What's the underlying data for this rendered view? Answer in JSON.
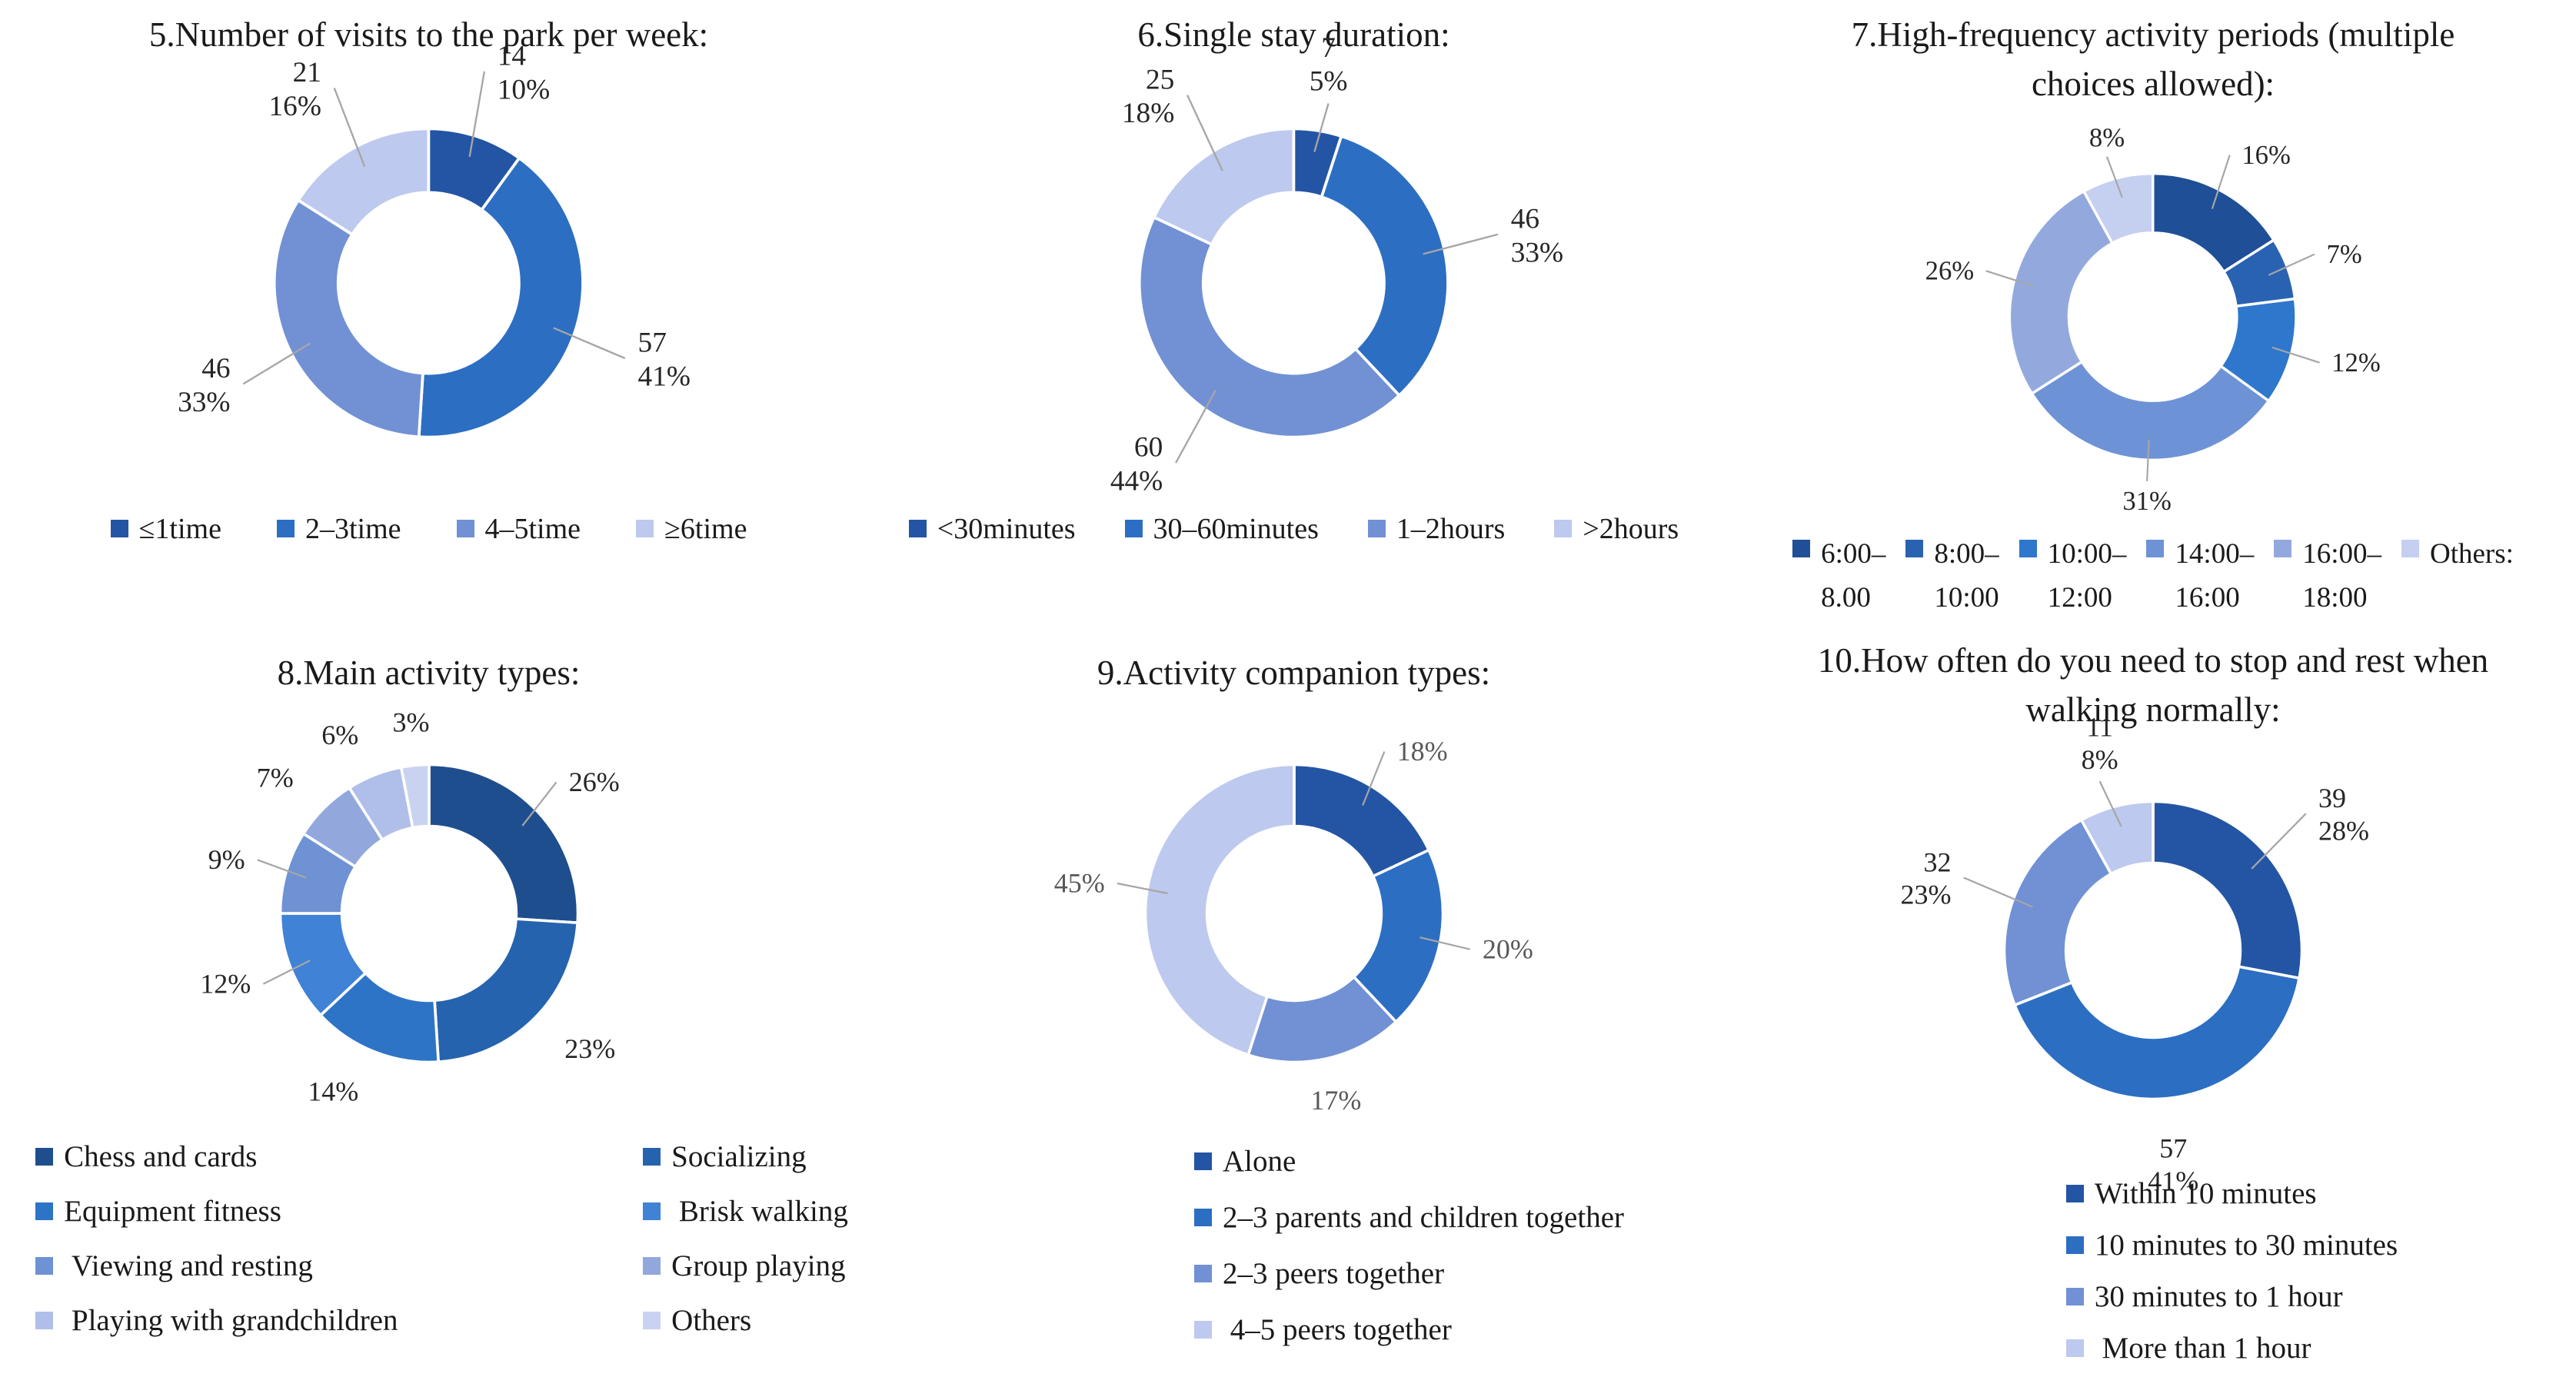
{
  "figure": {
    "background": "#ffffff",
    "text_color": "#1a1a1a",
    "leader_line_color": "#a6a6a6"
  },
  "chart_data": [
    {
      "id": "q5",
      "type": "donut",
      "title": "5.Number of visits to the park per week:",
      "label_style": "count_percent",
      "label_color": "#262626",
      "legend_layout": "row",
      "legend_position": "bottom",
      "slices": [
        {
          "name": "≤1time",
          "count": 14,
          "percent": 10,
          "color": "#2355A4",
          "leader": true
        },
        {
          "name": "2–3time",
          "count": 57,
          "percent": 41,
          "color": "#2C6EC2",
          "leader": true
        },
        {
          "name": "4–5time",
          "count": 46,
          "percent": 33,
          "color": "#7191D4",
          "leader": true
        },
        {
          "name": "≥6time",
          "count": 21,
          "percent": 16,
          "color": "#BDC9EE",
          "leader": true
        }
      ]
    },
    {
      "id": "q6",
      "type": "donut",
      "title": "6.Single stay duration:",
      "label_style": "count_percent",
      "label_color": "#262626",
      "legend_layout": "row",
      "legend_position": "bottom",
      "slices": [
        {
          "name": "<30minutes",
          "count": 7,
          "percent": 5,
          "color": "#2355A4",
          "leader": true
        },
        {
          "name": "30–60minutes",
          "count": 46,
          "percent": 33,
          "color": "#2C6EC2",
          "leader": true
        },
        {
          "name": "1–2hours",
          "count": 60,
          "percent": 44,
          "color": "#7191D4",
          "leader": true
        },
        {
          "name": ">2hours",
          "count": 25,
          "percent": 18,
          "color": "#BDC9EE",
          "leader": true
        }
      ]
    },
    {
      "id": "q7",
      "type": "donut",
      "title": "7.High-frequency activity periods (multiple choices allowed):",
      "label_style": "percent",
      "label_color": "#262626",
      "legend_layout": "row-2line",
      "legend_position": "bottom",
      "slices": [
        {
          "name": "6:00–\n8.00",
          "percent": 16,
          "color": "#1F4F96",
          "leader": true
        },
        {
          "name": "8:00–\n10:00",
          "percent": 7,
          "color": "#2A62B2",
          "leader": true
        },
        {
          "name": "10:00–\n12:00",
          "percent": 12,
          "color": "#2E77CC",
          "leader": true
        },
        {
          "name": "14:00–\n16:00",
          "percent": 31,
          "color": "#6E92D6",
          "leader": true
        },
        {
          "name": "16:00–\n18:00",
          "percent": 26,
          "color": "#93A9DE",
          "leader": true
        },
        {
          "name": "Others:",
          "percent": 8,
          "color": "#C5CFF0",
          "leader": true
        }
      ]
    },
    {
      "id": "q8",
      "type": "donut",
      "title": "8.Main activity types:",
      "label_style": "percent",
      "label_color": "#262626",
      "legend_layout": "grid-2col",
      "legend_position": "bottom",
      "slices": [
        {
          "name": "Chess and cards",
          "percent": 26,
          "color": "#1F4E8E",
          "leader": true
        },
        {
          "name": "Socializing",
          "percent": 23,
          "color": "#2563AE",
          "leader": false
        },
        {
          "name": "Equipment fitness",
          "percent": 14,
          "color": "#2E74C6",
          "leader": false
        },
        {
          "name": " Brisk walking",
          "percent": 12,
          "color": "#3F82D6",
          "leader": true
        },
        {
          "name": " Viewing and resting",
          "percent": 9,
          "color": "#6E92D4",
          "leader": true
        },
        {
          "name": "Group playing",
          "percent": 7,
          "color": "#92A8DC",
          "leader": false
        },
        {
          "name": " Playing with grandchildren",
          "percent": 6,
          "color": "#B0BFE9",
          "leader": false
        },
        {
          "name": "Others",
          "percent": 3,
          "color": "#C9D3F1",
          "leader": false
        }
      ]
    },
    {
      "id": "q9",
      "type": "donut",
      "title": "9.Activity companion types:",
      "label_style": "percent",
      "label_color": "#595959",
      "legend_layout": "column",
      "legend_position": "bottom",
      "slices": [
        {
          "name": "Alone",
          "percent": 18,
          "color": "#2355A4",
          "leader": true
        },
        {
          "name": "2–3 parents and children together",
          "percent": 20,
          "color": "#2C6EC2",
          "leader": true
        },
        {
          "name": "2–3 peers together",
          "percent": 17,
          "color": "#7191D4",
          "leader": false
        },
        {
          "name": " 4–5 peers together",
          "percent": 45,
          "color": "#BDC9EE",
          "leader": true
        }
      ]
    },
    {
      "id": "q10",
      "type": "donut",
      "title": "10.How often do you need to stop and rest when walking normally:",
      "label_style": "count_percent",
      "label_color": "#262626",
      "legend_layout": "column",
      "legend_position": "bottom",
      "slices": [
        {
          "name": "Within 10 minutes",
          "count": 39,
          "percent": 28,
          "color": "#2355A4",
          "leader": true
        },
        {
          "name": "10 minutes to 30 minutes",
          "count": 57,
          "percent": 41,
          "color": "#2C6EC2",
          "leader": false
        },
        {
          "name": "30 minutes to 1 hour",
          "count": 32,
          "percent": 23,
          "color": "#7191D4",
          "leader": true
        },
        {
          "name": " More than 1 hour",
          "count": 11,
          "percent": 8,
          "color": "#BDC9EE",
          "leader": true
        }
      ]
    }
  ]
}
